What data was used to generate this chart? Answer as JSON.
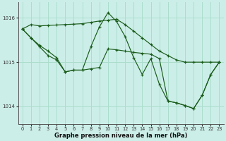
{
  "background_color": "#cceee8",
  "grid_color": "#aaddcc",
  "line_color": "#1a5c1a",
  "xlabel": "Graphe pression niveau de la mer (hPa)",
  "xlim": [
    -0.5,
    23.5
  ],
  "ylim": [
    1013.6,
    1016.35
  ],
  "yticks": [
    1014,
    1015,
    1016
  ],
  "xticks": [
    0,
    1,
    2,
    3,
    4,
    5,
    6,
    7,
    8,
    9,
    10,
    11,
    12,
    13,
    14,
    15,
    16,
    17,
    18,
    19,
    20,
    21,
    22,
    23
  ],
  "series": [
    {
      "x": [
        0,
        1,
        2,
        3,
        4,
        5,
        6,
        7,
        8,
        9,
        10,
        11,
        12,
        13,
        14,
        15,
        16,
        17,
        18,
        19,
        20,
        21,
        22,
        23
      ],
      "y": [
        1015.75,
        1015.85,
        1015.82,
        1015.83,
        1015.84,
        1015.85,
        1015.86,
        1015.87,
        1015.9,
        1015.93,
        1015.95,
        1015.97,
        1015.85,
        1015.7,
        1015.55,
        1015.4,
        1015.25,
        1015.15,
        1015.05,
        1015.0,
        1015.0,
        1015.0,
        1015.0,
        1015.0
      ]
    },
    {
      "x": [
        0,
        1,
        2,
        3,
        4,
        5,
        6,
        7,
        8,
        9,
        10,
        11,
        12,
        13,
        14,
        15,
        16,
        17,
        18,
        19,
        20,
        21,
        22,
        23
      ],
      "y": [
        1015.75,
        1015.55,
        1015.35,
        1015.15,
        1015.05,
        1014.78,
        1014.82,
        1014.82,
        1015.35,
        1015.8,
        1016.12,
        1015.92,
        1015.58,
        1015.1,
        1014.72,
        1015.08,
        1014.5,
        1014.12,
        1014.08,
        1014.02,
        1013.95,
        1014.25,
        1014.72,
        1015.0
      ]
    },
    {
      "x": [
        0,
        1,
        2,
        3,
        4,
        5,
        6,
        7,
        8,
        9,
        10,
        11,
        12,
        13,
        14,
        15,
        16,
        17,
        18,
        19,
        20,
        21,
        22,
        23
      ],
      "y": [
        1015.75,
        1015.55,
        1015.38,
        1015.25,
        1015.1,
        1014.78,
        1014.82,
        1014.82,
        1014.85,
        1014.88,
        1015.3,
        1015.28,
        1015.25,
        1015.22,
        1015.2,
        1015.18,
        1015.08,
        1014.12,
        1014.08,
        1014.02,
        1013.95,
        1014.25,
        1014.72,
        1015.0
      ]
    }
  ]
}
